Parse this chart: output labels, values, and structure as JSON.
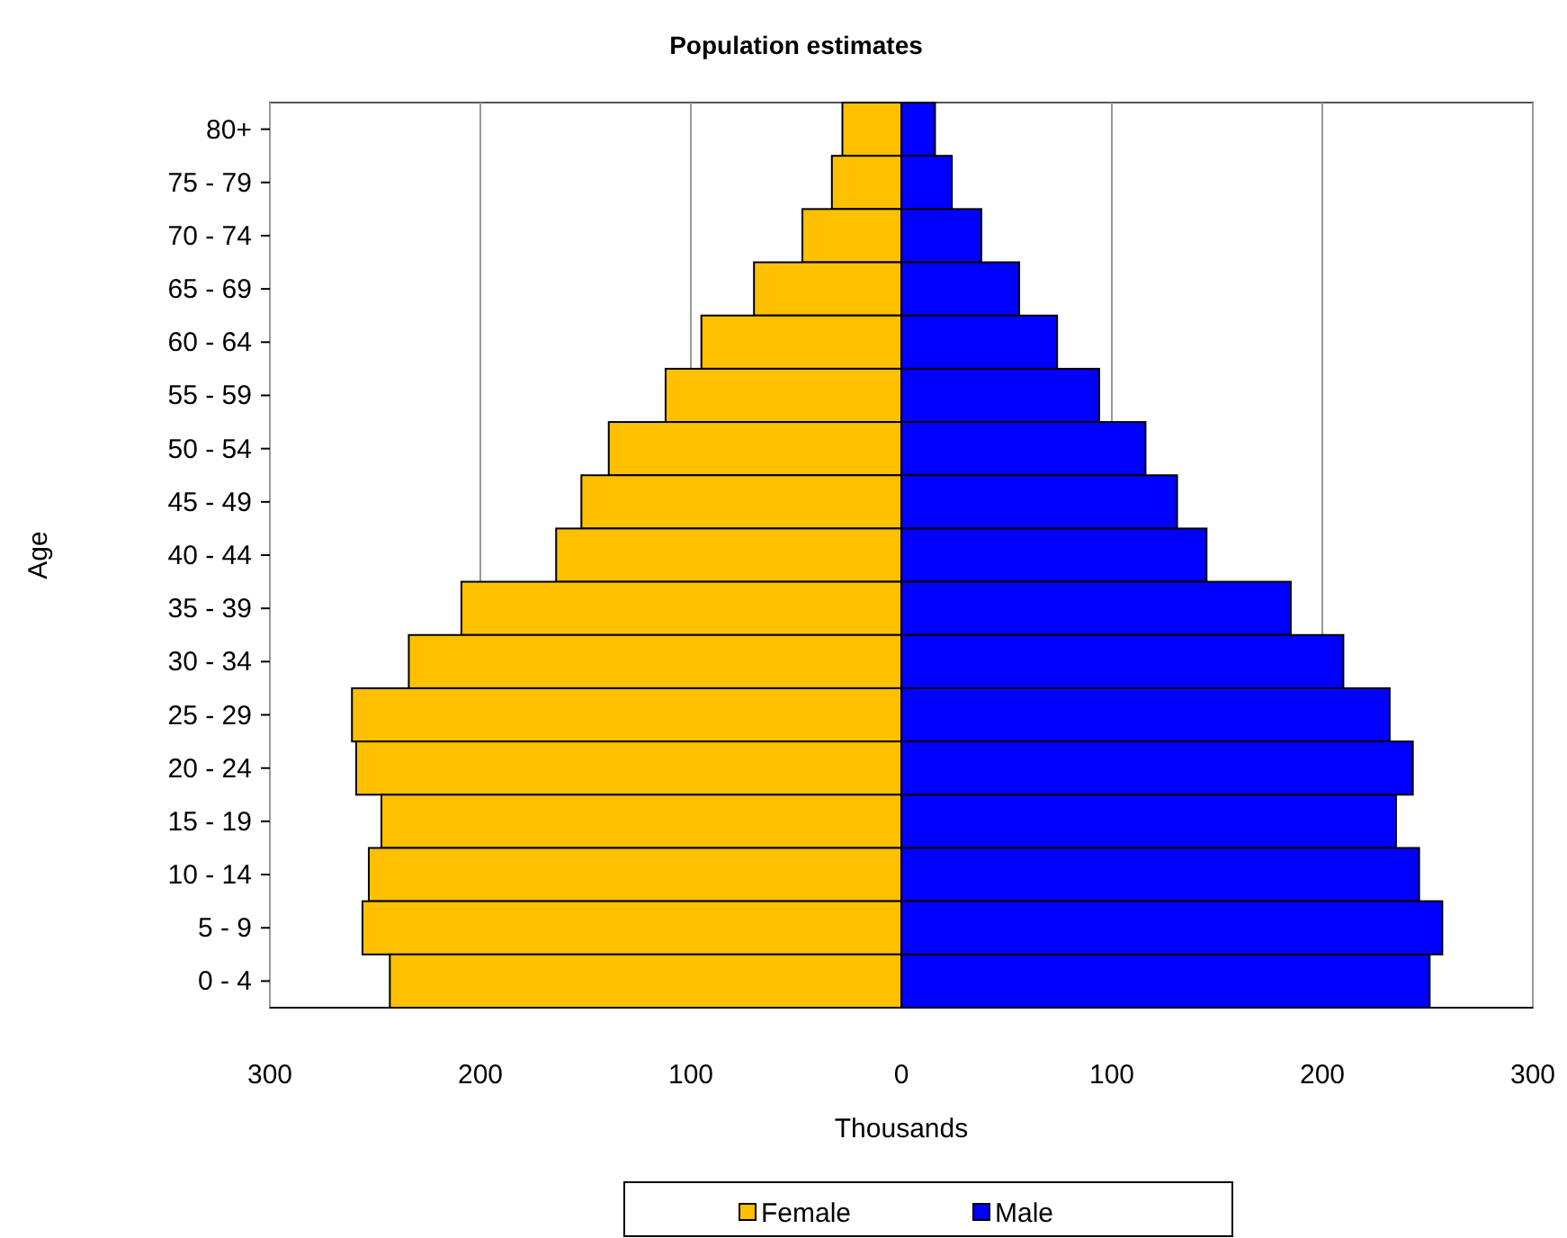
{
  "chart_data": {
    "type": "bar",
    "orientation": "horizontal",
    "title": "Population estimates",
    "xlabel": "Thousands",
    "ylabel": "Age",
    "categories": [
      "80+",
      "75 - 79",
      "70 - 74",
      "65 - 69",
      "60 - 64",
      "55 - 59",
      "50 - 54",
      "45 - 49",
      "40 - 44",
      "35 - 39",
      "30 - 34",
      "25 - 29",
      "20 - 24",
      "15 - 19",
      "10 - 14",
      "5 - 9",
      "0 - 4"
    ],
    "series": [
      {
        "name": "Female",
        "color": "#ffc000",
        "values": [
          -28,
          -33,
          -47,
          -70,
          -95,
          -112,
          -139,
          -152,
          -164,
          -209,
          -234,
          -261,
          -259,
          -247,
          -253,
          -256,
          -243
        ]
      },
      {
        "name": "Male",
        "color": "#0000ff",
        "values": [
          16,
          24,
          38,
          56,
          74,
          94,
          116,
          131,
          145,
          185,
          210,
          232,
          243,
          235,
          246,
          257,
          251
        ]
      }
    ],
    "xlim": [
      -300,
      300
    ],
    "xticks": [
      {
        "value": -300,
        "label": "300"
      },
      {
        "value": -200,
        "label": "200"
      },
      {
        "value": -100,
        "label": "100"
      },
      0,
      100,
      200,
      300
    ],
    "grid": "x",
    "legend": "bottom",
    "stacked": true
  }
}
